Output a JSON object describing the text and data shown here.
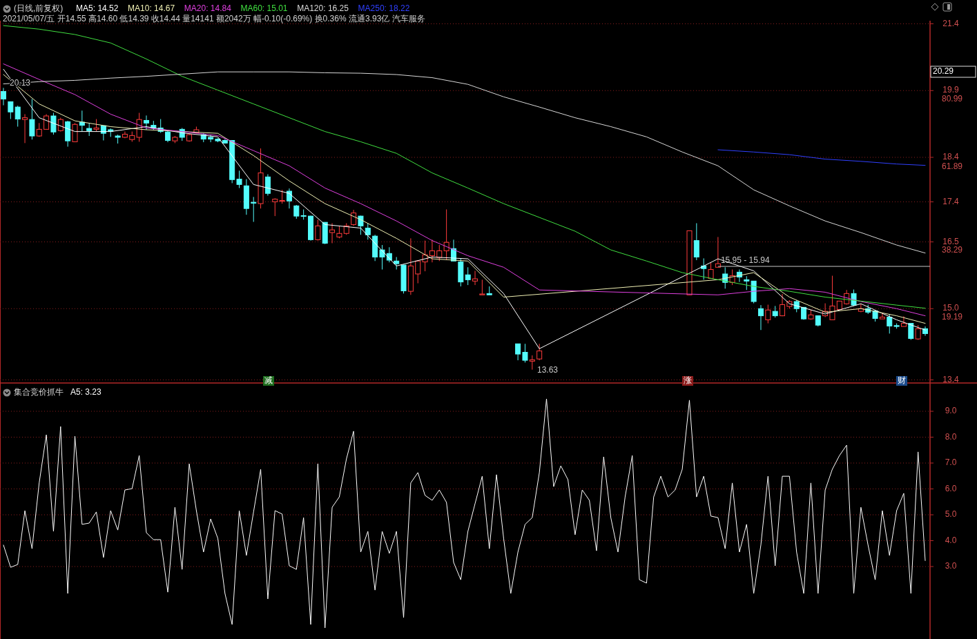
{
  "chart_data": [
    {
      "type": "candlestick",
      "title": "(日线,前复权)",
      "subtitle": "2021/05/07/五 开14.55 高14.60 低14.39 收14.44 量14141 额2042万 幅-0.10(-0.69%) 换0.36% 流通3.93亿 汽车服务",
      "categories": [
        null,
        null,
        null,
        null,
        null,
        null,
        null,
        null,
        null,
        null,
        null,
        null,
        null,
        null,
        null,
        null,
        null,
        null,
        null,
        null,
        null,
        null,
        null,
        null,
        null,
        null,
        null,
        null,
        null,
        null,
        null,
        null,
        null,
        null,
        null,
        null,
        null,
        null,
        null,
        null,
        null,
        null,
        null,
        null,
        null,
        null,
        null,
        null,
        null,
        null,
        null,
        null,
        null,
        null,
        null,
        null,
        null,
        null,
        null,
        null,
        null,
        null,
        null,
        null,
        null,
        null,
        null,
        null,
        null,
        null,
        null,
        null,
        null,
        null,
        null,
        null,
        null,
        null,
        null,
        null,
        null,
        null,
        null,
        null,
        null,
        null,
        null,
        null,
        null,
        null,
        null,
        null,
        null,
        null,
        null,
        null,
        null,
        null,
        null,
        null,
        null,
        null,
        null,
        null,
        null,
        null,
        null,
        null,
        null,
        null,
        null,
        null,
        null,
        null,
        null,
        null,
        null,
        null,
        null,
        null,
        null,
        null,
        null,
        null,
        null,
        null,
        null,
        null,
        null,
        null
      ],
      "ohlc": [
        [
          19.88,
          19.96,
          19.57,
          19.71
        ],
        [
          19.65,
          19.65,
          19.26,
          19.42
        ],
        [
          19.53,
          19.56,
          19.09,
          19.26
        ],
        [
          19.25,
          19.37,
          18.72,
          19.29
        ],
        [
          19.25,
          19.71,
          18.8,
          18.88
        ],
        [
          18.88,
          19.17,
          18.86,
          19.03
        ],
        [
          19.03,
          19.37,
          19.02,
          19.33
        ],
        [
          19.33,
          19.4,
          18.91,
          18.97
        ],
        [
          19.0,
          19.29,
          18.98,
          19.25
        ],
        [
          19.2,
          19.22,
          18.64,
          18.77
        ],
        [
          18.75,
          19.17,
          18.74,
          19.14
        ],
        [
          19.19,
          19.45,
          18.98,
          19.12
        ],
        [
          19.05,
          19.17,
          18.88,
          19.0
        ],
        [
          19.03,
          19.26,
          18.98,
          19.06
        ],
        [
          19.11,
          19.11,
          18.78,
          18.94
        ],
        [
          19.02,
          19.05,
          18.86,
          18.98
        ],
        [
          18.88,
          18.91,
          18.71,
          18.85
        ],
        [
          18.85,
          18.98,
          18.83,
          18.92
        ],
        [
          18.8,
          18.98,
          18.75,
          18.89
        ],
        [
          18.85,
          19.4,
          18.75,
          19.25
        ],
        [
          19.23,
          19.34,
          19.02,
          19.17
        ],
        [
          19.12,
          19.22,
          19.02,
          19.06
        ],
        [
          19.06,
          19.26,
          18.95,
          18.98
        ],
        [
          18.97,
          19.02,
          18.74,
          18.78
        ],
        [
          18.77,
          18.88,
          18.72,
          18.85
        ],
        [
          19.03,
          19.06,
          18.77,
          18.85
        ],
        [
          18.77,
          18.94,
          18.75,
          18.91
        ],
        [
          18.95,
          19.09,
          18.94,
          19.02
        ],
        [
          18.91,
          18.94,
          18.74,
          18.81
        ],
        [
          18.85,
          18.91,
          18.74,
          18.81
        ],
        [
          18.81,
          18.83,
          18.74,
          18.77
        ],
        [
          18.78,
          18.81,
          18.71,
          18.72
        ],
        [
          18.78,
          18.78,
          17.82,
          17.9
        ],
        [
          17.91,
          18.1,
          17.71,
          17.79
        ],
        [
          17.76,
          17.91,
          17.11,
          17.25
        ],
        [
          17.39,
          17.51,
          16.95,
          17.37
        ],
        [
          17.36,
          18.6,
          17.25,
          18.05
        ],
        [
          17.96,
          18.02,
          17.54,
          17.59
        ],
        [
          17.4,
          17.48,
          17.08,
          17.46
        ],
        [
          17.42,
          17.67,
          17.36,
          17.43
        ],
        [
          17.64,
          17.7,
          17.25,
          17.42
        ],
        [
          17.31,
          17.33,
          17.02,
          17.08
        ],
        [
          17.09,
          17.23,
          17.0,
          17.08
        ],
        [
          17.08,
          17.09,
          16.53,
          16.55
        ],
        [
          16.55,
          17.0,
          16.53,
          16.86
        ],
        [
          16.94,
          16.94,
          16.45,
          16.47
        ],
        [
          16.71,
          16.92,
          16.47,
          16.77
        ],
        [
          16.61,
          16.86,
          16.58,
          16.69
        ],
        [
          16.69,
          16.92,
          16.66,
          16.86
        ],
        [
          16.89,
          17.22,
          16.86,
          17.15
        ],
        [
          17.08,
          17.09,
          16.66,
          16.86
        ],
        [
          16.81,
          16.92,
          16.55,
          16.66
        ],
        [
          16.63,
          16.66,
          16.07,
          16.16
        ],
        [
          16.32,
          16.43,
          15.88,
          16.16
        ],
        [
          16.24,
          16.38,
          16.04,
          16.09
        ],
        [
          16.07,
          16.16,
          15.88,
          16.01
        ],
        [
          15.98,
          15.99,
          15.34,
          15.4
        ],
        [
          15.39,
          16.58,
          15.31,
          15.96
        ],
        [
          15.78,
          16.09,
          15.57,
          16.07
        ],
        [
          16.05,
          16.53,
          15.84,
          16.21
        ],
        [
          16.19,
          16.55,
          16.04,
          16.3
        ],
        [
          16.15,
          16.43,
          16.07,
          16.3
        ],
        [
          16.3,
          17.23,
          16.09,
          16.49
        ],
        [
          16.35,
          16.55,
          16.07,
          16.07
        ],
        [
          16.05,
          16.12,
          15.5,
          15.6
        ],
        [
          15.76,
          15.93,
          15.53,
          15.65
        ],
        [
          15.62,
          15.85,
          15.53,
          15.67
        ],
        [
          15.31,
          15.65,
          15.31,
          15.33
        ],
        [
          15.34,
          15.5,
          15.31,
          15.31
        ],
        null,
        null,
        null,
        [
          14.21,
          14.21,
          13.84,
          13.98
        ],
        [
          14.02,
          14.21,
          13.79,
          13.84
        ],
        [
          13.82,
          13.95,
          13.63,
          13.85
        ],
        [
          13.87,
          14.21,
          13.84,
          14.05
        ],
        null,
        null,
        null,
        null,
        null,
        null,
        null,
        null,
        null,
        null,
        null,
        null,
        null,
        null,
        null,
        null,
        null,
        null,
        null,
        null,
        [
          15.31,
          16.75,
          15.31,
          16.75
        ],
        [
          16.53,
          16.92,
          16.09,
          16.16
        ],
        [
          15.96,
          16.13,
          15.65,
          15.9
        ],
        [
          15.68,
          16.04,
          15.68,
          15.88
        ],
        [
          15.93,
          16.61,
          15.93,
          16.01
        ],
        [
          15.78,
          15.93,
          15.45,
          15.59
        ],
        [
          15.59,
          15.88,
          15.53,
          15.74
        ],
        [
          15.82,
          15.88,
          15.6,
          15.71
        ],
        [
          15.65,
          15.73,
          15.42,
          15.62
        ],
        [
          15.62,
          15.62,
          15.12,
          15.16
        ],
        [
          15.0,
          15.08,
          14.52,
          14.84
        ],
        [
          14.75,
          15.09,
          14.67,
          14.97
        ],
        [
          14.94,
          15.06,
          14.8,
          14.84
        ],
        [
          14.84,
          15.33,
          14.83,
          15.09
        ],
        [
          15.05,
          15.19,
          15.0,
          15.16
        ],
        [
          15.16,
          15.19,
          14.92,
          15.0
        ],
        [
          15.03,
          15.03,
          14.75,
          14.77
        ],
        [
          14.77,
          14.98,
          14.75,
          14.86
        ],
        [
          14.84,
          14.84,
          14.6,
          14.63
        ],
        [
          14.84,
          15.12,
          14.81,
          14.94
        ],
        [
          14.75,
          15.74,
          14.75,
          15.06
        ],
        [
          14.98,
          15.17,
          14.98,
          15.17
        ],
        [
          15.11,
          15.42,
          15.09,
          15.34
        ],
        [
          15.34,
          15.43,
          15.06,
          15.08
        ],
        [
          14.94,
          15.11,
          14.92,
          15.0
        ],
        [
          15.0,
          15.09,
          14.88,
          14.92
        ],
        [
          14.95,
          14.95,
          14.71,
          14.78
        ],
        [
          14.77,
          14.91,
          14.77,
          14.81
        ],
        [
          14.81,
          14.88,
          14.44,
          14.61
        ],
        [
          14.62,
          14.67,
          14.55,
          14.6
        ],
        [
          14.6,
          14.83,
          14.6,
          14.67
        ],
        [
          14.67,
          14.67,
          14.3,
          14.33
        ],
        [
          14.32,
          14.63,
          14.3,
          14.55
        ],
        [
          14.55,
          14.6,
          14.39,
          14.44
        ]
      ],
      "series": [
        {
          "name": "MA5: 14.52",
          "type": "line",
          "color": "#ffffff",
          "values": [
            20.38,
            null,
            null,
            null,
            null,
            19.29,
            null,
            null,
            null,
            null,
            18.98,
            null,
            null,
            null,
            null,
            18.98,
            null,
            null,
            null,
            null,
            19.09,
            null,
            null,
            null,
            null,
            18.95,
            null,
            null,
            null,
            null,
            18.86,
            null,
            null,
            null,
            null,
            17.79,
            null,
            null,
            null,
            null,
            17.59,
            null,
            null,
            null,
            null,
            16.89,
            null,
            null,
            null,
            null,
            16.81,
            null,
            null,
            null,
            null,
            15.96,
            null,
            null,
            null,
            null,
            16.16,
            null,
            null,
            null,
            null,
            16.12,
            null,
            null,
            null,
            null,
            15.34,
            null,
            null,
            null,
            null,
            14.1,
            null,
            null,
            null,
            null,
            null,
            null,
            null,
            null,
            null,
            null,
            null,
            null,
            null,
            null,
            null,
            null,
            null,
            null,
            null,
            null,
            null,
            null,
            null,
            null,
            16.12,
            null,
            null,
            null,
            null,
            15.85,
            null,
            null,
            null,
            null,
            15.11,
            null,
            null,
            null,
            null,
            14.88,
            null,
            null,
            null,
            null,
            15.11,
            null,
            null,
            null,
            null,
            14.75,
            null,
            null,
            null,
            14.52
          ]
        },
        {
          "name": "MA10: 14.67",
          "type": "line",
          "color": "#f0f0b4",
          "values": [
            20.26,
            null,
            null,
            null,
            null,
            19.6,
            null,
            null,
            null,
            null,
            19.22,
            null,
            null,
            null,
            null,
            19.09,
            null,
            null,
            null,
            null,
            19.02,
            null,
            null,
            null,
            null,
            18.98,
            null,
            null,
            null,
            null,
            18.94,
            null,
            null,
            null,
            null,
            18.44,
            null,
            null,
            null,
            null,
            17.87,
            null,
            null,
            null,
            null,
            17.36,
            null,
            null,
            null,
            null,
            17.0,
            null,
            null,
            null,
            null,
            16.58,
            null,
            null,
            null,
            null,
            16.12,
            null,
            null,
            null,
            null,
            16.07,
            null,
            null,
            null,
            null,
            15.26,
            null,
            null,
            null,
            null,
            null,
            null,
            null,
            null,
            null,
            null,
            null,
            null,
            null,
            null,
            null,
            null,
            null,
            null,
            null,
            null,
            null,
            null,
            null,
            null,
            null,
            null,
            null,
            null,
            null,
            15.65,
            null,
            null,
            null,
            null,
            15.81,
            null,
            null,
            null,
            null,
            15.26,
            null,
            null,
            null,
            null,
            14.92,
            null,
            null,
            null,
            null,
            15.0,
            null,
            null,
            null,
            null,
            14.84,
            null,
            null,
            null,
            14.67
          ]
        },
        {
          "name": "MA20: 14.84",
          "type": "line",
          "color": "#e040e0",
          "values": [
            20.5,
            null,
            null,
            null,
            null,
            20.15,
            null,
            null,
            null,
            null,
            19.81,
            null,
            null,
            null,
            null,
            19.37,
            null,
            null,
            null,
            null,
            19.06,
            null,
            null,
            null,
            null,
            18.98,
            null,
            null,
            null,
            null,
            18.89,
            null,
            null,
            null,
            null,
            18.55,
            null,
            null,
            null,
            null,
            18.21,
            null,
            null,
            null,
            null,
            17.71,
            null,
            null,
            null,
            null,
            17.36,
            null,
            null,
            null,
            null,
            16.97,
            null,
            null,
            null,
            null,
            16.53,
            null,
            null,
            null,
            null,
            16.19,
            null,
            null,
            null,
            null,
            15.93,
            null,
            null,
            null,
            null,
            15.42,
            null,
            null,
            null,
            null,
            null,
            null,
            null,
            null,
            null,
            null,
            null,
            null,
            null,
            null,
            null,
            null,
            null,
            null,
            null,
            null,
            null,
            null,
            null,
            null,
            15.31,
            null,
            null,
            null,
            null,
            15.39,
            null,
            null,
            null,
            null,
            15.45,
            null,
            null,
            null,
            null,
            15.37,
            null,
            null,
            null,
            null,
            15.16,
            null,
            null,
            null,
            null,
            15.0,
            null,
            null,
            null,
            14.84
          ]
        },
        {
          "name": "MA60: 15.01",
          "type": "line",
          "color": "#40e040",
          "values": [
            21.36,
            null,
            null,
            null,
            null,
            21.28,
            null,
            null,
            null,
            null,
            21.16,
            null,
            null,
            null,
            null,
            20.97,
            null,
            null,
            null,
            null,
            20.61,
            null,
            null,
            null,
            null,
            20.22,
            null,
            null,
            null,
            null,
            19.91,
            null,
            null,
            null,
            null,
            19.6,
            null,
            null,
            null,
            null,
            19.29,
            null,
            null,
            null,
            null,
            18.98,
            null,
            null,
            null,
            null,
            18.75,
            null,
            null,
            null,
            null,
            18.49,
            null,
            null,
            null,
            null,
            18.05,
            null,
            null,
            null,
            null,
            17.71,
            null,
            null,
            null,
            null,
            17.36,
            null,
            null,
            null,
            null,
            17.05,
            null,
            null,
            null,
            null,
            16.74,
            null,
            null,
            null,
            null,
            16.32,
            null,
            null,
            null,
            null,
            16.07,
            null,
            null,
            null,
            null,
            15.81,
            null,
            null,
            null,
            null,
            15.65,
            null,
            null,
            null,
            null,
            15.5,
            null,
            null,
            null,
            null,
            15.39,
            null,
            null,
            null,
            null,
            15.26,
            null,
            null,
            null,
            null,
            15.17,
            null,
            null,
            null,
            null,
            15.08,
            null,
            null,
            null,
            15.01
          ]
        },
        {
          "name": "MA120: 16.25",
          "type": "line",
          "color": "#d8d8d8",
          "values": [
            20.05,
            null,
            null,
            null,
            null,
            20.1,
            null,
            null,
            null,
            null,
            20.13,
            null,
            null,
            null,
            null,
            20.18,
            null,
            null,
            null,
            null,
            20.22,
            null,
            null,
            null,
            null,
            20.27,
            null,
            null,
            null,
            null,
            20.32,
            null,
            null,
            null,
            null,
            20.32,
            null,
            null,
            null,
            null,
            20.32,
            null,
            null,
            null,
            null,
            20.3,
            null,
            null,
            null,
            null,
            20.29,
            null,
            null,
            null,
            null,
            20.26,
            null,
            null,
            null,
            null,
            20.19,
            null,
            null,
            null,
            null,
            20.04,
            null,
            null,
            null,
            null,
            19.76,
            null,
            null,
            null,
            null,
            19.53,
            null,
            null,
            null,
            null,
            19.29,
            null,
            null,
            null,
            null,
            19.09,
            null,
            null,
            null,
            null,
            18.86,
            null,
            null,
            null,
            null,
            18.52,
            null,
            null,
            null,
            null,
            18.21,
            null,
            null,
            null,
            null,
            17.67,
            null,
            null,
            null,
            null,
            17.31,
            null,
            null,
            null,
            null,
            16.97,
            null,
            null,
            null,
            null,
            16.71,
            null,
            null,
            null,
            null,
            16.43,
            null,
            null,
            null,
            16.25
          ]
        },
        {
          "name": "MA250: 18.22",
          "type": "line",
          "color": "#3040ff",
          "values": [
            null,
            null,
            null,
            null,
            null,
            null,
            null,
            null,
            null,
            null,
            null,
            null,
            null,
            null,
            null,
            null,
            null,
            null,
            null,
            null,
            null,
            null,
            null,
            null,
            null,
            null,
            null,
            null,
            null,
            null,
            null,
            null,
            null,
            null,
            null,
            null,
            null,
            null,
            null,
            null,
            null,
            null,
            null,
            null,
            null,
            null,
            null,
            null,
            null,
            null,
            null,
            null,
            null,
            null,
            null,
            null,
            null,
            null,
            null,
            null,
            null,
            null,
            null,
            null,
            null,
            null,
            null,
            null,
            null,
            null,
            null,
            null,
            null,
            null,
            null,
            null,
            null,
            null,
            null,
            null,
            null,
            null,
            null,
            null,
            null,
            null,
            null,
            null,
            null,
            null,
            null,
            null,
            null,
            null,
            null,
            null,
            null,
            null,
            null,
            null,
            18.57,
            null,
            null,
            null,
            null,
            18.52,
            null,
            null,
            null,
            null,
            18.46,
            null,
            null,
            null,
            null,
            18.36,
            null,
            null,
            null,
            null,
            18.31,
            null,
            null,
            null,
            null,
            18.25,
            null,
            null,
            null,
            18.22
          ]
        }
      ],
      "ylim": [
        13.33,
        21.47
      ],
      "yticks": [
        21.4,
        19.9,
        18.4,
        17.4,
        16.5,
        {
          "value": 15.0,
          "label": "15.0"
        },
        13.4
      ],
      "y2lim": [
        -1.87,
        100.8
      ],
      "y2ticks": [
        80.99,
        61.89,
        38.29,
        19.19
      ],
      "grid": "y",
      "legend": "top left",
      "annotations": [
        "20.13",
        "13.63",
        "减",
        "涨",
        "财",
        "20.29"
      ],
      "ref_lines": [
        {
          "axis": "y",
          "value": 15.95,
          "label": "15.95 - 15.94",
          "color": "#c8c8c8"
        }
      ]
    },
    {
      "type": "line",
      "title": "集合竞价抓牛",
      "categories": [
        null,
        null,
        null,
        null,
        null,
        null,
        null,
        null,
        null,
        null,
        null,
        null,
        null,
        null,
        null,
        null,
        null,
        null,
        null,
        null,
        null,
        null,
        null,
        null,
        null,
        null,
        null,
        null,
        null,
        null,
        null,
        null,
        null,
        null,
        null,
        null,
        null,
        null,
        null,
        null,
        null,
        null,
        null,
        null,
        null,
        null,
        null,
        null,
        null,
        null,
        null,
        null,
        null,
        null,
        null,
        null,
        null,
        null,
        null,
        null,
        null,
        null,
        null,
        null,
        null,
        null,
        null,
        null,
        null,
        null,
        null,
        null,
        null,
        null,
        null,
        null,
        null,
        null,
        null,
        null,
        null,
        null,
        null,
        null,
        null,
        null,
        null,
        null,
        null,
        null,
        null,
        null,
        null,
        null,
        null,
        null,
        null,
        null,
        null,
        null,
        null,
        null,
        null,
        null,
        null,
        null,
        null,
        null,
        null,
        null,
        null,
        null,
        null,
        null,
        null,
        null,
        null,
        null,
        null,
        null,
        null,
        null,
        null,
        null,
        null,
        null,
        null,
        null,
        null,
        null
      ],
      "series": [
        {
          "name": "A5: 3.23",
          "color": "#ffffff",
          "values": [
            3.83,
            2.97,
            3.08,
            5.16,
            3.69,
            6.23,
            8.09,
            4.36,
            8.41,
            1.96,
            8.04,
            4.63,
            4.68,
            5.11,
            3.35,
            5.16,
            4.41,
            5.96,
            6.01,
            7.29,
            4.31,
            4.04,
            4.04,
            2.01,
            5.29,
            2.89,
            6.97,
            5.16,
            3.56,
            4.84,
            4.09,
            1.96,
            0.76,
            5.16,
            3.43,
            5.11,
            6.76,
            1.75,
            5.16,
            5.03,
            3.03,
            2.89,
            4.89,
            0.76,
            6.97,
            0.63,
            5.29,
            5.69,
            7.16,
            8.23,
            3.56,
            4.36,
            2.09,
            4.36,
            3.51,
            4.36,
            1.03,
            6.23,
            6.63,
            5.75,
            5.56,
            5.96,
            5.48,
            3.16,
            2.49,
            4.36,
            5.43,
            6.49,
            3.69,
            6.55,
            4.09,
            1.96,
            3.56,
            4.63,
            4.89,
            6.63,
            9.48,
            6.09,
            6.89,
            6.36,
            4.23,
            5.96,
            5.56,
            3.61,
            7.24,
            4.89,
            3.56,
            5.69,
            7.29,
            2.49,
            2.36,
            5.69,
            6.49,
            5.69,
            5.96,
            6.76,
            9.43,
            5.69,
            6.49,
            4.95,
            4.89,
            3.69,
            6.23,
            3.56,
            4.63,
            1.96,
            3.83,
            6.49,
            3.03,
            6.49,
            6.49,
            3.56,
            1.96,
            6.23,
            1.96,
            5.96,
            6.76,
            7.29,
            7.69,
            1.96,
            5.29,
            3.83,
            2.49,
            5.16,
            3.43,
            5.16,
            5.83,
            1.96,
            7.43,
            3.23
          ]
        }
      ],
      "ylim": [
        0.2,
        10.04
      ],
      "yticks": [
        {
          "value": 3,
          "label": "3.0"
        },
        {
          "value": 4,
          "label": "4.0"
        },
        {
          "value": 5,
          "label": "5.0"
        },
        {
          "value": 6,
          "label": "6.0"
        },
        {
          "value": 7,
          "label": "7.0"
        },
        {
          "value": 8,
          "label": "8.0"
        },
        {
          "value": 9,
          "label": "9.0"
        }
      ],
      "grid": "y",
      "legend": "top left"
    }
  ]
}
